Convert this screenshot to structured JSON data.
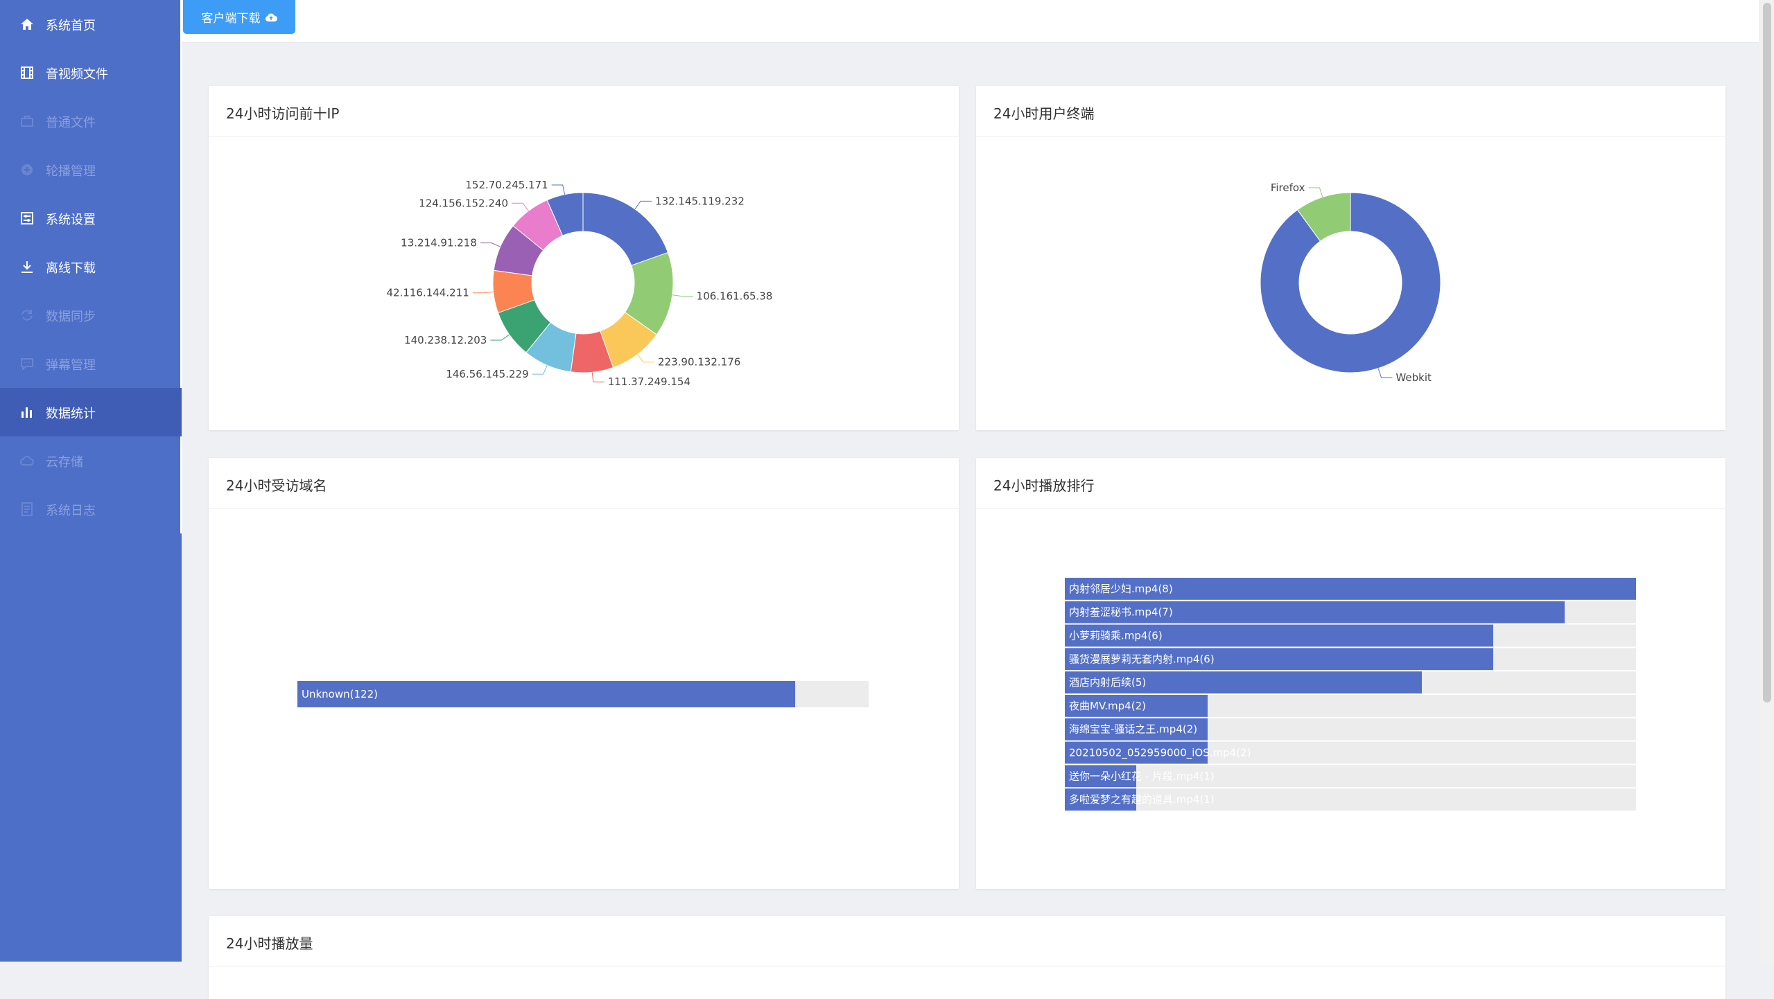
{
  "sidebar": {
    "items": [
      {
        "label": "系统首页",
        "icon": "home-icon",
        "state": "normal"
      },
      {
        "label": "音视频文件",
        "icon": "film-icon",
        "state": "normal"
      },
      {
        "label": "普通文件",
        "icon": "briefcase-icon",
        "state": "disabled"
      },
      {
        "label": "轮播管理",
        "icon": "plus-circle-icon",
        "state": "disabled"
      },
      {
        "label": "系统设置",
        "icon": "settings-panel-icon",
        "state": "normal"
      },
      {
        "label": "离线下载",
        "icon": "download-icon",
        "state": "normal"
      },
      {
        "label": "数据同步",
        "icon": "sync-icon",
        "state": "disabled"
      },
      {
        "label": "弹幕管理",
        "icon": "comment-icon",
        "state": "disabled"
      },
      {
        "label": "数据统计",
        "icon": "bar-chart-icon",
        "state": "active"
      },
      {
        "label": "云存储",
        "icon": "cloud-icon",
        "state": "disabled"
      },
      {
        "label": "系统日志",
        "icon": "document-icon",
        "state": "disabled"
      }
    ]
  },
  "topbar": {
    "download_label": "客户端下载"
  },
  "cards": {
    "top_ip": {
      "title": "24小时访问前十IP"
    },
    "terminals": {
      "title": "24小时用户终端"
    },
    "domains": {
      "title": "24小时受访域名"
    },
    "play_rank": {
      "title": "24小时播放排行"
    },
    "play_volume": {
      "title": "24小时播放量"
    }
  },
  "colors": {
    "sidebar": "#4e6fc8",
    "sidebar_active": "#3f5db5",
    "accent_button": "#3d9df6",
    "palette": [
      "#5470c6",
      "#91cc75",
      "#fac858",
      "#ee6666",
      "#73c0de",
      "#3ba272",
      "#fc8452",
      "#9a60b4",
      "#ea7ccc",
      "#5470c6"
    ]
  },
  "chart_data": [
    {
      "type": "pie",
      "title": "24小时访问前十IP",
      "labels": [
        "132.145.119.232",
        "106.161.65.38",
        "223.90.132.176",
        "111.37.249.154",
        "146.56.145.229",
        "140.238.12.203",
        "42.116.144.211",
        "13.214.91.218",
        "124.156.152.240",
        "152.70.245.171"
      ],
      "values": [
        18,
        14,
        9,
        7,
        8,
        8,
        7,
        8,
        7,
        6
      ]
    },
    {
      "type": "pie",
      "title": "24小时用户终端",
      "labels": [
        "Webkit",
        "Firefox"
      ],
      "values": [
        90,
        10
      ]
    },
    {
      "type": "bar",
      "title": "24小时受访域名",
      "orientation": "horizontal",
      "categories": [
        "Unknown(122)"
      ],
      "values": [
        122
      ],
      "xlim": [
        0,
        140
      ]
    },
    {
      "type": "bar",
      "title": "24小时播放排行",
      "orientation": "horizontal",
      "categories": [
        "内射邻居少妇.mp4(8)",
        "内射羞涩秘书.mp4(7)",
        "小萝莉骑乘.mp4(6)",
        "骚货漫展萝莉无套内射.mp4(6)",
        "酒店内射后续(5)",
        "夜曲MV.mp4(2)",
        "海绵宝宝-骚话之王.mp4(2)",
        "20210502_052959000_iOS.mp4(2)",
        "送你一朵小红花 - 片段.mp4(1)",
        "多啦爱梦之有趣的道具.mp4(1)"
      ],
      "values": [
        8,
        7,
        6,
        6,
        5,
        2,
        2,
        2,
        1,
        1
      ],
      "xlim": [
        0,
        8
      ]
    }
  ]
}
